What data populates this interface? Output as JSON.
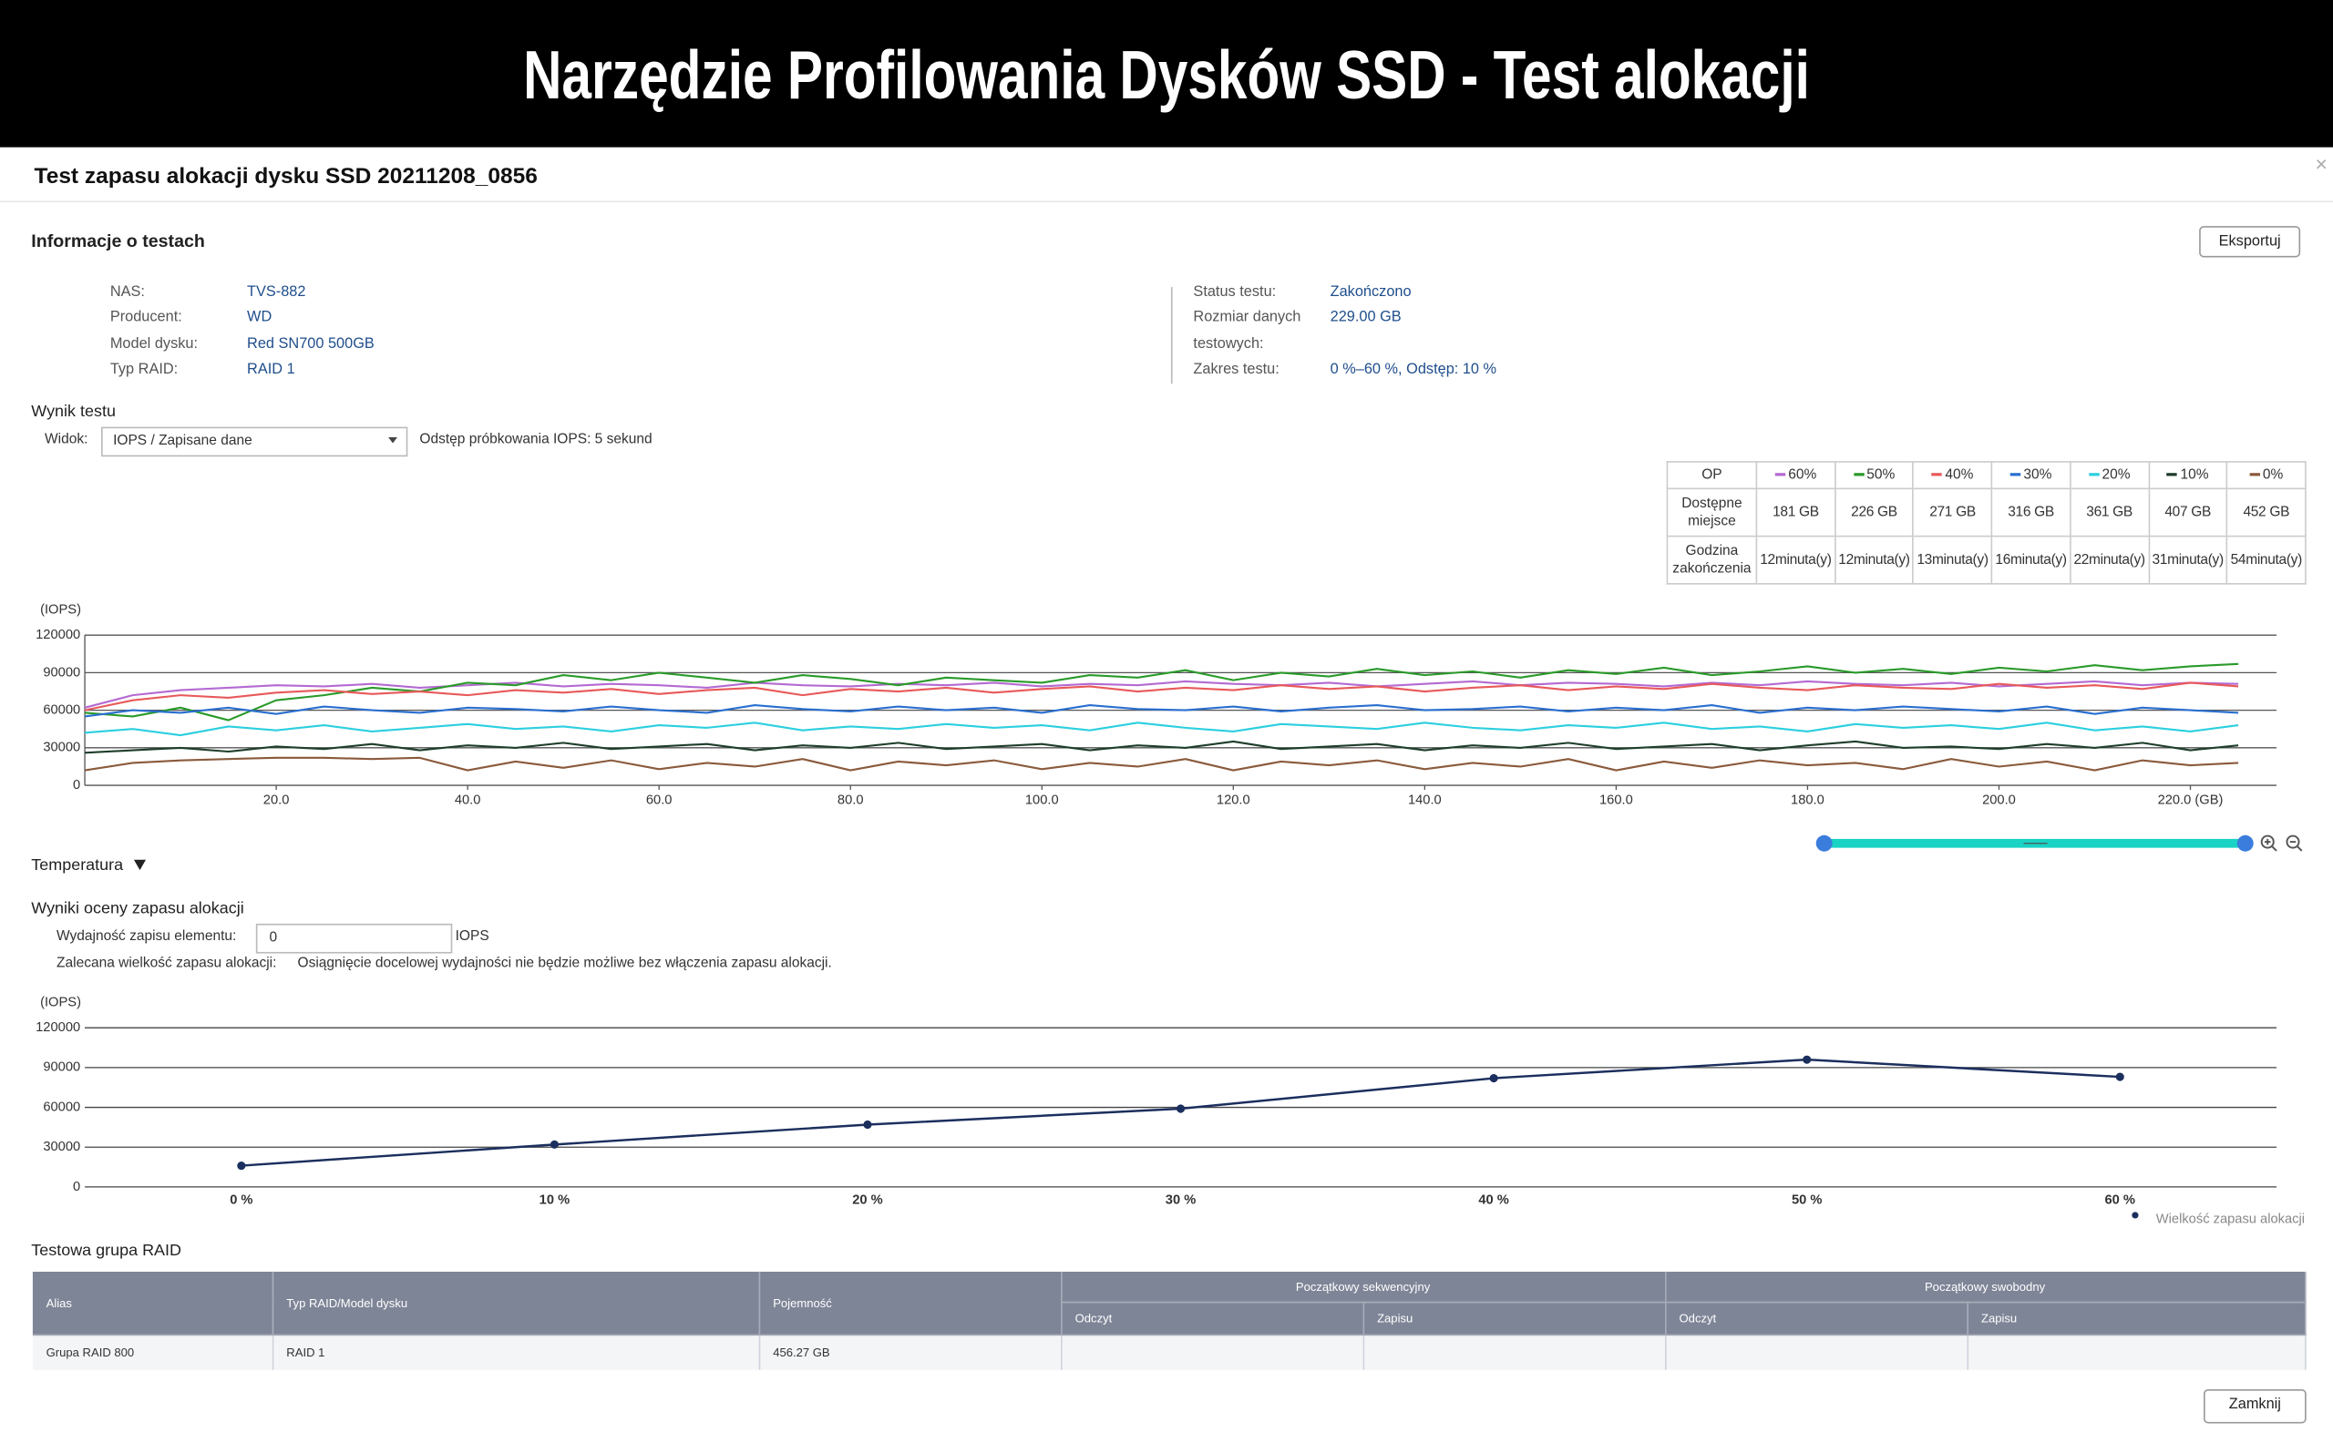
{
  "header": {
    "title": "Narzędzie Profilowania Dysków SSD - Test alokacji"
  },
  "dialog": {
    "title": "Test zapasu alokacji dysku SSD 20211208_0856",
    "export_button": "Eksportuj",
    "close_button": "Zamknij"
  },
  "test_info": {
    "heading": "Informacje o testach",
    "left": [
      {
        "label": "NAS:",
        "value": "TVS-882"
      },
      {
        "label": "Producent:",
        "value": "WD"
      },
      {
        "label": "Model dysku:",
        "value": "Red SN700 500GB"
      },
      {
        "label": "Typ RAID:",
        "value": "RAID 1"
      }
    ],
    "right": [
      {
        "label": "Status testu:",
        "value": "Zakończono"
      },
      {
        "label": "Rozmiar danych testowych:",
        "value": "229.00 GB"
      },
      {
        "label": "Zakres testu:",
        "value": "0 %–60 %, Odstęp: 10 %"
      }
    ]
  },
  "result": {
    "heading": "Wynik testu",
    "view_label": "Widok:",
    "view_value": "IOPS / Zapisane dane",
    "sampling": "Odstęp próbkowania IOPS: 5 sekund"
  },
  "op_table": {
    "header": "OP",
    "rows": [
      {
        "label": "Dostępne miejsce",
        "cells": [
          "181 GB",
          "226 GB",
          "271 GB",
          "316 GB",
          "361 GB",
          "407 GB",
          "452 GB"
        ]
      },
      {
        "label": "Godzina zakończenia",
        "cells": [
          "12minuta(y)",
          "12minuta(y)",
          "13minuta(y)",
          "16minuta(y)",
          "22minuta(y)",
          "31minuta(y)",
          "54minuta(y)"
        ]
      }
    ]
  },
  "chart_data": [
    {
      "type": "line",
      "ylabel": "(IOPS)",
      "x": [
        0,
        5,
        10,
        15,
        20,
        25,
        30,
        35,
        40,
        45,
        50,
        55,
        60,
        65,
        70,
        75,
        80,
        85,
        90,
        95,
        100,
        105,
        110,
        115,
        120,
        125,
        130,
        135,
        140,
        145,
        150,
        155,
        160,
        165,
        170,
        175,
        180,
        185,
        190,
        195,
        200,
        205,
        210,
        215,
        220,
        225
      ],
      "xlim": [
        0,
        229
      ],
      "xticks": [
        {
          "value": 20,
          "label": "20.0"
        },
        {
          "value": 40,
          "label": "40.0"
        },
        {
          "value": 60,
          "label": "60.0"
        },
        {
          "value": 80,
          "label": "80.0"
        },
        {
          "value": 100,
          "label": "100.0"
        },
        {
          "value": 120,
          "label": "120.0"
        },
        {
          "value": 140,
          "label": "140.0"
        },
        {
          "value": 160,
          "label": "160.0"
        },
        {
          "value": 180,
          "label": "180.0"
        },
        {
          "value": 200,
          "label": "200.0"
        },
        {
          "value": 220,
          "label": "220.0 (GB)"
        }
      ],
      "ylim": [
        0,
        120000
      ],
      "yticks": [
        0,
        30000,
        60000,
        90000,
        120000
      ],
      "grid": true,
      "markers": false,
      "series": [
        {
          "name": "60%",
          "color": "#b46ad2",
          "values": [
            62000,
            72000,
            76000,
            78000,
            80000,
            79000,
            81000,
            78000,
            80000,
            82000,
            79000,
            81000,
            80000,
            78000,
            82000,
            80000,
            79000,
            81000,
            80000,
            82000,
            79000,
            81000,
            80000,
            83000,
            81000,
            80000,
            82000,
            79000,
            81000,
            83000,
            80000,
            82000,
            81000,
            79000,
            82000,
            80000,
            83000,
            81000,
            80000,
            82000,
            79000,
            81000,
            83000,
            80000,
            82000,
            81000
          ]
        },
        {
          "name": "50%",
          "color": "#2a9a2a",
          "values": [
            58000,
            55000,
            62000,
            52000,
            68000,
            72000,
            78000,
            75000,
            82000,
            80000,
            88000,
            84000,
            90000,
            86000,
            82000,
            88000,
            85000,
            80000,
            86000,
            84000,
            82000,
            88000,
            86000,
            92000,
            84000,
            90000,
            87000,
            93000,
            88000,
            91000,
            86000,
            92000,
            89000,
            94000,
            88000,
            91000,
            95000,
            90000,
            93000,
            89000,
            94000,
            91000,
            96000,
            92000,
            95000,
            97000
          ]
        },
        {
          "name": "40%",
          "color": "#e8595a",
          "values": [
            60000,
            68000,
            72000,
            70000,
            74000,
            76000,
            73000,
            75000,
            72000,
            76000,
            74000,
            77000,
            73000,
            76000,
            78000,
            72000,
            77000,
            75000,
            78000,
            74000,
            77000,
            79000,
            75000,
            78000,
            76000,
            80000,
            77000,
            79000,
            75000,
            78000,
            80000,
            76000,
            79000,
            77000,
            81000,
            78000,
            76000,
            80000,
            78000,
            77000,
            81000,
            78000,
            80000,
            77000,
            82000,
            79000
          ]
        },
        {
          "name": "30%",
          "color": "#2a6fd0",
          "values": [
            55000,
            60000,
            58000,
            62000,
            57000,
            63000,
            60000,
            58000,
            62000,
            61000,
            59000,
            63000,
            60000,
            58000,
            64000,
            61000,
            59000,
            63000,
            60000,
            62000,
            58000,
            64000,
            61000,
            60000,
            63000,
            59000,
            62000,
            64000,
            60000,
            61000,
            63000,
            59000,
            62000,
            60000,
            64000,
            58000,
            62000,
            60000,
            63000,
            61000,
            59000,
            63000,
            57000,
            62000,
            60000,
            58000
          ]
        },
        {
          "name": "20%",
          "color": "#2ccfdf",
          "values": [
            42000,
            45000,
            40000,
            47000,
            44000,
            48000,
            43000,
            46000,
            49000,
            45000,
            47000,
            43000,
            48000,
            46000,
            50000,
            44000,
            47000,
            45000,
            49000,
            46000,
            48000,
            44000,
            50000,
            46000,
            43000,
            49000,
            47000,
            45000,
            50000,
            46000,
            44000,
            48000,
            46000,
            50000,
            45000,
            47000,
            43000,
            49000,
            46000,
            48000,
            45000,
            50000,
            44000,
            47000,
            43000,
            48000
          ]
        },
        {
          "name": "10%",
          "color": "#1e3e2a",
          "values": [
            26000,
            28000,
            30000,
            27000,
            31000,
            29000,
            33000,
            28000,
            32000,
            30000,
            34000,
            29000,
            31000,
            33000,
            28000,
            32000,
            30000,
            34000,
            29000,
            31000,
            33000,
            28000,
            32000,
            30000,
            35000,
            29000,
            31000,
            33000,
            28000,
            32000,
            30000,
            34000,
            29000,
            31000,
            33000,
            28000,
            32000,
            35000,
            30000,
            31000,
            29000,
            33000,
            30000,
            34000,
            28000,
            32000
          ]
        },
        {
          "name": "0%",
          "color": "#8a5a3c",
          "values": [
            12000,
            18000,
            20000,
            21000,
            22000,
            22000,
            21000,
            22000,
            12000,
            19000,
            14000,
            20000,
            13000,
            18000,
            15000,
            21000,
            12000,
            19000,
            16000,
            20000,
            13000,
            18000,
            15000,
            21000,
            12000,
            19000,
            16000,
            20000,
            13000,
            18000,
            15000,
            21000,
            12000,
            19000,
            14000,
            20000,
            16000,
            18000,
            13000,
            21000,
            15000,
            19000,
            12000,
            20000,
            16000,
            18000
          ]
        }
      ]
    },
    {
      "type": "line",
      "ylabel": "(IOPS)",
      "categories": [
        "0 %",
        "10 %",
        "20 %",
        "30 %",
        "40 %",
        "50 %",
        "60 %"
      ],
      "ylim": [
        0,
        120000
      ],
      "yticks": [
        0,
        30000,
        60000,
        90000,
        120000
      ],
      "grid": true,
      "markers": true,
      "legend": "bottom-right",
      "series": [
        {
          "name": "Wielkość zapasu alokacji",
          "color": "#1b2f5e",
          "values": [
            16000,
            32000,
            47000,
            59000,
            82000,
            96000,
            83000
          ]
        }
      ]
    }
  ],
  "temperature": "Temperatura",
  "assessment": {
    "heading": "Wyniki oceny zapasu alokacji",
    "perf_label": "Wydajność zapisu elementu:",
    "perf_value": 0,
    "perf_unit": "IOPS",
    "size_label": "Zalecana wielkość zapasu alokacji:",
    "size_message": "Osiągnięcie docelowej wydajności nie będzie możliwe bez włączenia zapasu alokacji."
  },
  "raid": {
    "heading": "Testowa grupa RAID",
    "columns": [
      "Alias",
      "Typ RAID/Model dysku",
      "Pojemność"
    ],
    "groups": [
      "Początkowy sekwencyjny",
      "Początkowy swobodny"
    ],
    "subcolumns": [
      "Odczyt",
      "Zapisu",
      "Odczyt",
      "Zapisu"
    ],
    "rows": [
      [
        "Grupa RAID 800",
        "RAID 1",
        "456.27 GB"
      ]
    ]
  }
}
